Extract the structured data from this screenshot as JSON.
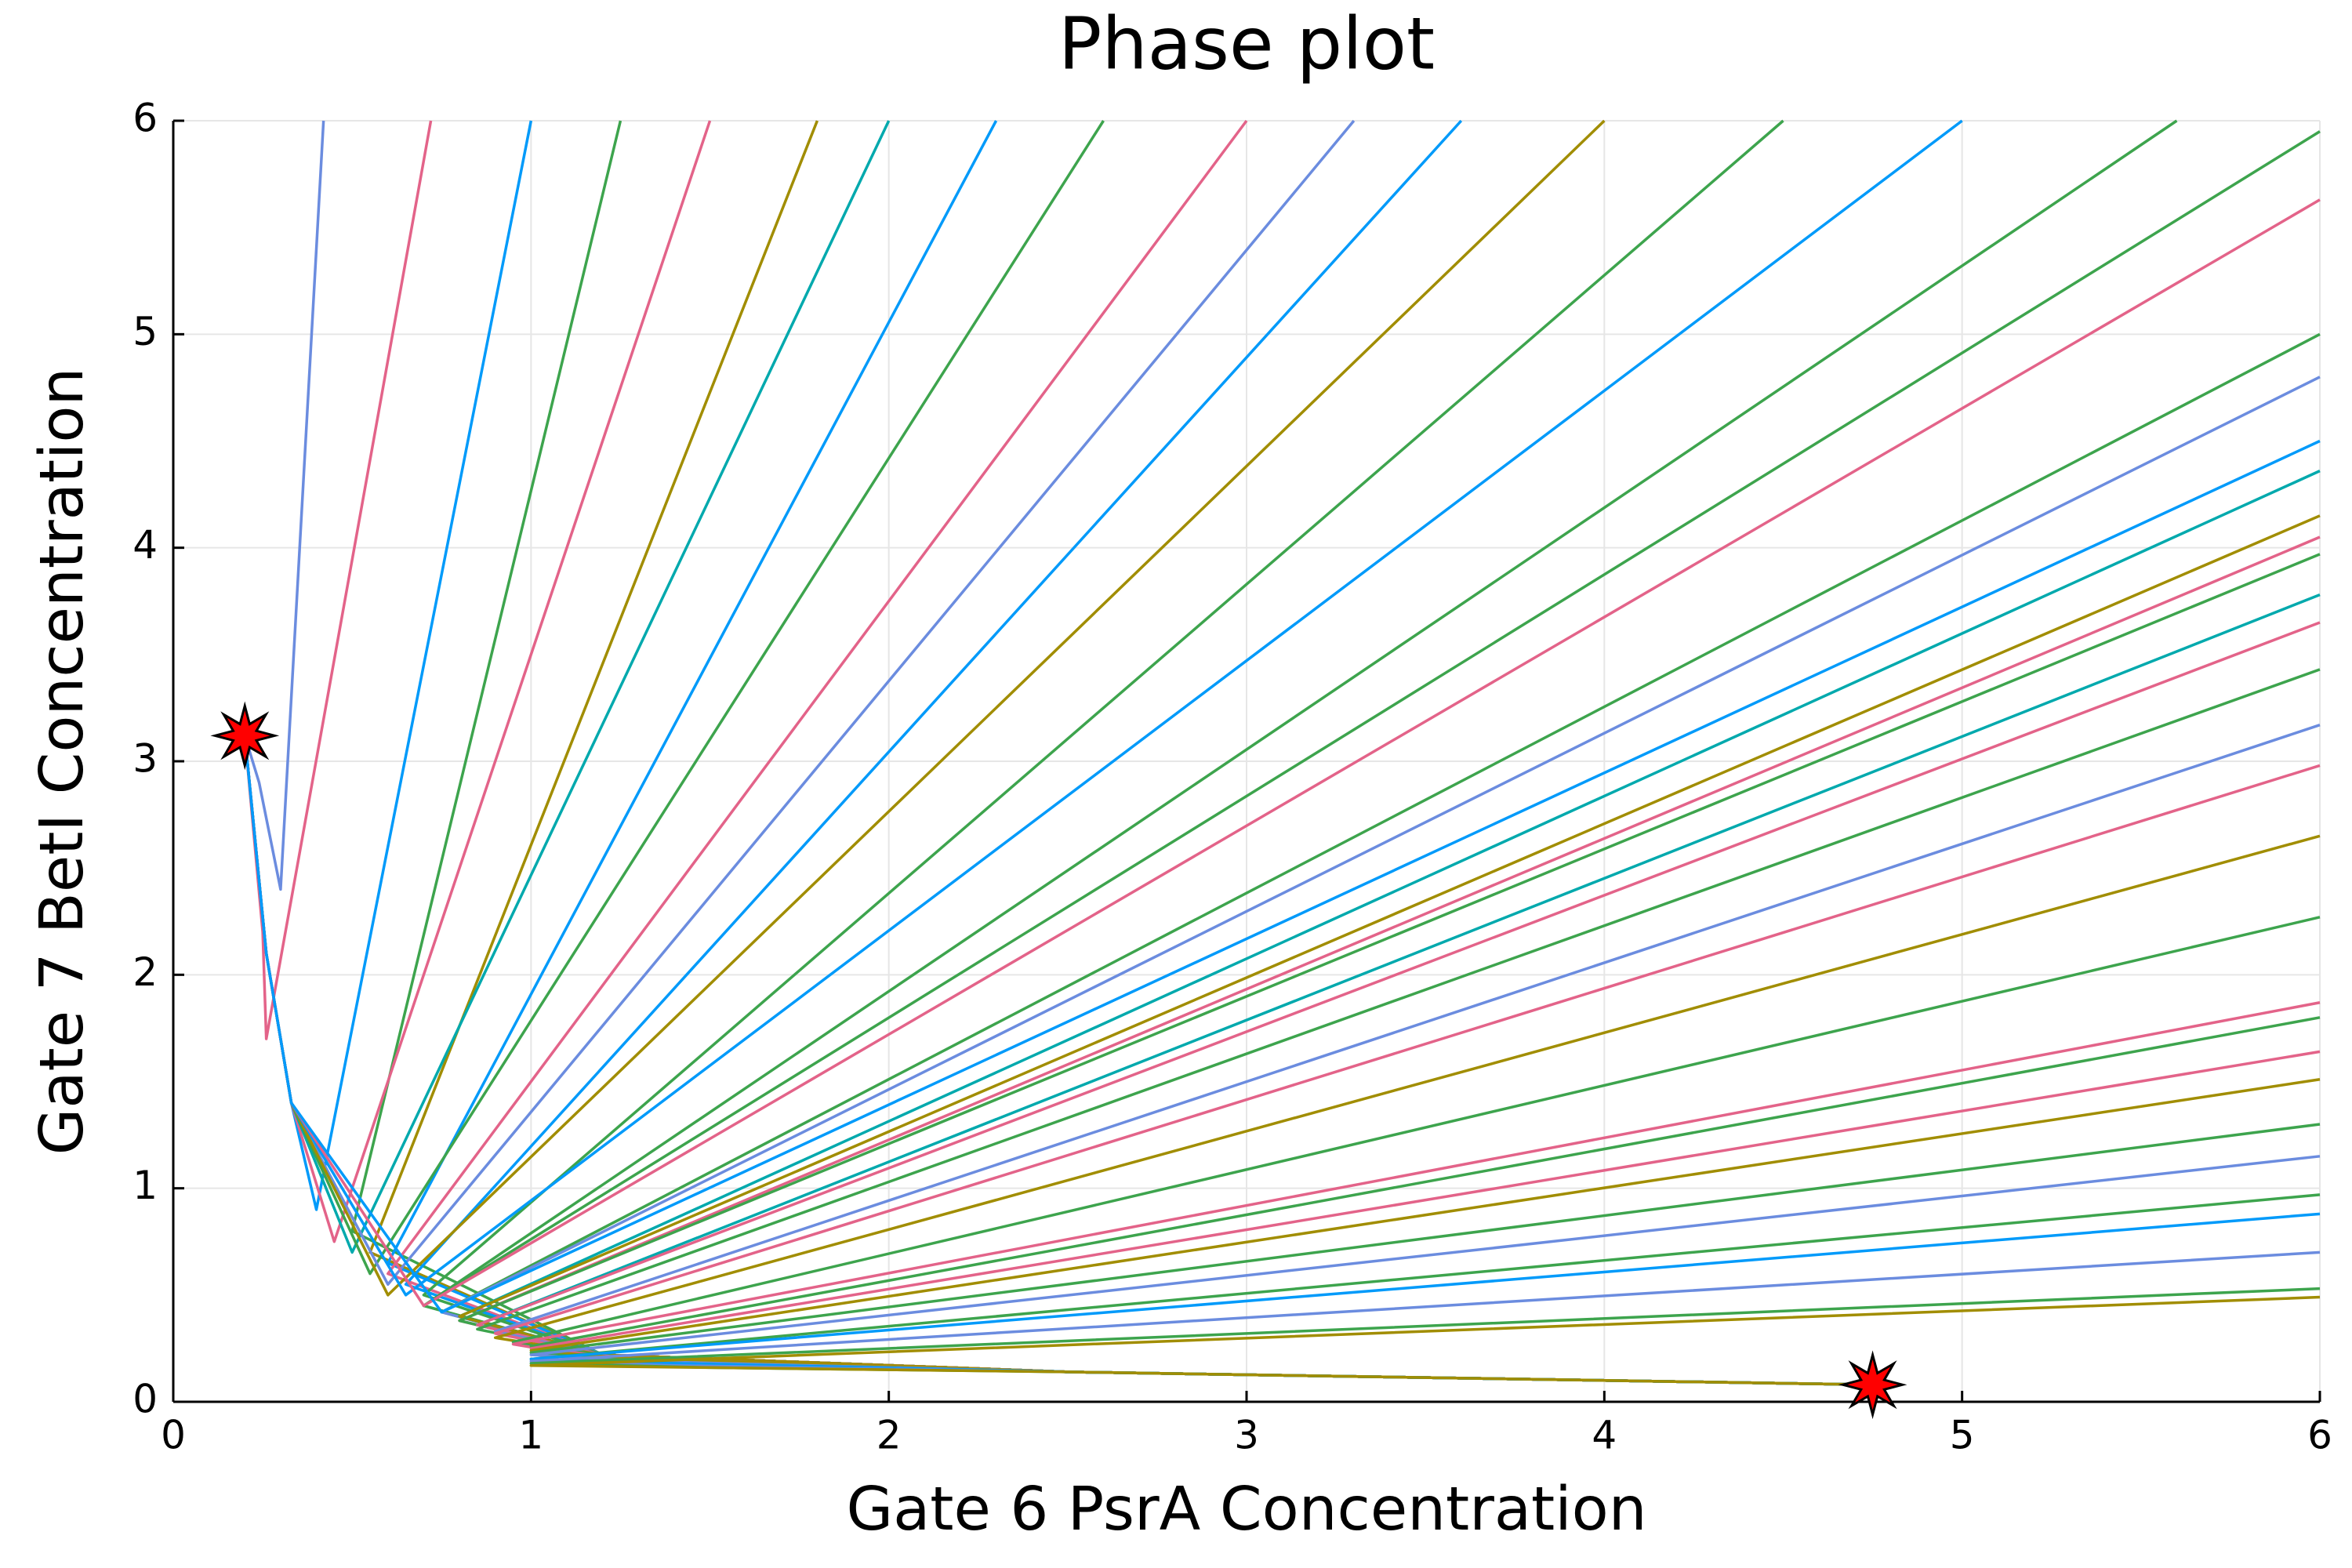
{
  "chart_data": {
    "type": "line",
    "title": "Phase plot",
    "x_label": "Gate 6 PsrA Concentration",
    "y_label": "Gate 7 BetI Concentration",
    "xlim": [
      0,
      6
    ],
    "ylim": [
      0,
      6
    ],
    "xticks": [
      0,
      1,
      2,
      3,
      4,
      5,
      6
    ],
    "yticks": [
      0,
      1,
      2,
      3,
      4,
      5,
      6
    ],
    "grid": true,
    "series": [
      {
        "color": "#6b8cdf",
        "x": [
          0.42,
          0.3,
          0.24,
          0.2
        ],
        "y": [
          6,
          2.4,
          2.9,
          3.12
        ]
      },
      {
        "color": "#e36389",
        "x": [
          0.72,
          0.26,
          0.25,
          0.2
        ],
        "y": [
          6,
          1.7,
          2.2,
          3.12
        ]
      },
      {
        "color": "#009afa",
        "x": [
          1.0,
          0.4,
          0.33,
          0.26,
          0.2
        ],
        "y": [
          6,
          0.9,
          1.4,
          2.1,
          3.12
        ]
      },
      {
        "color": "#3da44d",
        "x": [
          1.25,
          0.5,
          1.2,
          2.5,
          4.75
        ],
        "y": [
          6,
          0.8,
          0.22,
          0.14,
          0.08
        ]
      },
      {
        "color": "#e36389",
        "x": [
          1.5,
          0.45,
          0.33,
          0.26,
          0.2
        ],
        "y": [
          6,
          0.75,
          1.4,
          2.1,
          3.12
        ]
      },
      {
        "color": "#a18d00",
        "x": [
          1.8,
          0.55,
          1.2,
          2.5,
          4.75
        ],
        "y": [
          6,
          0.7,
          0.22,
          0.14,
          0.08
        ]
      },
      {
        "color": "#00a9ad",
        "x": [
          2.0,
          0.5,
          0.33,
          0.26,
          0.2
        ],
        "y": [
          6,
          0.7,
          1.4,
          2.1,
          3.12
        ]
      },
      {
        "color": "#009afa",
        "x": [
          2.3,
          0.6,
          1.2,
          2.5,
          4.75
        ],
        "y": [
          6,
          0.65,
          0.22,
          0.14,
          0.08
        ]
      },
      {
        "color": "#3da44d",
        "x": [
          2.6,
          0.55,
          0.33,
          0.26,
          0.2
        ],
        "y": [
          6,
          0.6,
          1.4,
          2.1,
          3.12
        ]
      },
      {
        "color": "#e36389",
        "x": [
          3.0,
          0.6,
          1.2,
          2.5,
          4.75
        ],
        "y": [
          6,
          0.6,
          0.22,
          0.14,
          0.08
        ]
      },
      {
        "color": "#6b8cdf",
        "x": [
          3.3,
          0.6,
          0.33,
          0.26,
          0.2
        ],
        "y": [
          6,
          0.55,
          1.4,
          2.1,
          3.12
        ]
      },
      {
        "color": "#009afa",
        "x": [
          3.6,
          0.65,
          1.2,
          2.5,
          4.75
        ],
        "y": [
          6,
          0.55,
          0.22,
          0.14,
          0.08
        ]
      },
      {
        "color": "#a18d00",
        "x": [
          4.0,
          0.6,
          0.33,
          0.26,
          0.2
        ],
        "y": [
          6,
          0.5,
          1.4,
          2.1,
          3.12
        ]
      },
      {
        "color": "#3da44d",
        "x": [
          4.5,
          0.7,
          1.2,
          2.5,
          4.75
        ],
        "y": [
          6,
          0.5,
          0.22,
          0.14,
          0.08
        ]
      },
      {
        "color": "#009afa",
        "x": [
          5.0,
          0.65,
          0.33,
          0.26,
          0.2
        ],
        "y": [
          6,
          0.5,
          1.4,
          2.1,
          3.12
        ]
      },
      {
        "color": "#3da44d",
        "x": [
          5.6,
          0.7,
          1.2,
          2.5,
          4.75
        ],
        "y": [
          6,
          0.45,
          0.22,
          0.14,
          0.08
        ]
      },
      {
        "color": "#3da44d",
        "x": [
          6,
          0.7,
          1.2,
          2.5,
          4.75
        ],
        "y": [
          5.95,
          0.45,
          0.22,
          0.14,
          0.08
        ]
      },
      {
        "color": "#e36389",
        "x": [
          6,
          0.7,
          0.33,
          0.26,
          0.2
        ],
        "y": [
          5.63,
          0.45,
          1.4,
          2.1,
          3.12
        ]
      },
      {
        "color": "#3da44d",
        "x": [
          6,
          0.75,
          1.2,
          2.5,
          4.75
        ],
        "y": [
          5.0,
          0.42,
          0.22,
          0.14,
          0.08
        ]
      },
      {
        "color": "#6b8cdf",
        "x": [
          6,
          0.75,
          1.2,
          2.5,
          4.75
        ],
        "y": [
          4.8,
          0.42,
          0.22,
          0.14,
          0.08
        ]
      },
      {
        "color": "#009afa",
        "x": [
          6,
          0.75,
          0.33,
          0.26,
          0.2
        ],
        "y": [
          4.5,
          0.42,
          1.4,
          2.1,
          3.12
        ]
      },
      {
        "color": "#00a9ad",
        "x": [
          6,
          0.8,
          1.2,
          2.5,
          4.75
        ],
        "y": [
          4.36,
          0.4,
          0.22,
          0.14,
          0.08
        ]
      },
      {
        "color": "#a18d00",
        "x": [
          6,
          0.8,
          1.2,
          2.5,
          4.75
        ],
        "y": [
          4.15,
          0.4,
          0.22,
          0.14,
          0.08
        ]
      },
      {
        "color": "#e36389",
        "x": [
          6,
          0.8,
          1.2,
          2.5,
          4.75
        ],
        "y": [
          4.05,
          0.38,
          0.22,
          0.14,
          0.08
        ]
      },
      {
        "color": "#3da44d",
        "x": [
          6,
          0.8,
          1.2,
          2.5,
          4.75
        ],
        "y": [
          3.97,
          0.38,
          0.22,
          0.14,
          0.08
        ]
      },
      {
        "color": "#00a9ad",
        "x": [
          6,
          0.85,
          1.2,
          2.5,
          4.75
        ],
        "y": [
          3.78,
          0.36,
          0.22,
          0.14,
          0.08
        ]
      },
      {
        "color": "#e36389",
        "x": [
          6,
          0.85,
          1.2,
          2.5,
          4.75
        ],
        "y": [
          3.65,
          0.36,
          0.22,
          0.14,
          0.08
        ]
      },
      {
        "color": "#3da44d",
        "x": [
          6,
          0.85,
          1.2,
          2.5,
          4.75
        ],
        "y": [
          3.43,
          0.34,
          0.22,
          0.14,
          0.08
        ]
      },
      {
        "color": "#6b8cdf",
        "x": [
          6,
          0.9,
          1.2,
          2.5,
          4.75
        ],
        "y": [
          3.17,
          0.33,
          0.22,
          0.14,
          0.08
        ]
      },
      {
        "color": "#e36389",
        "x": [
          6,
          0.9,
          1.2,
          2.5,
          4.75
        ],
        "y": [
          2.98,
          0.32,
          0.22,
          0.14,
          0.08
        ]
      },
      {
        "color": "#a18d00",
        "x": [
          6,
          0.9,
          1.2,
          2.5,
          4.75
        ],
        "y": [
          2.65,
          0.3,
          0.22,
          0.14,
          0.08
        ]
      },
      {
        "color": "#3da44d",
        "x": [
          6,
          0.95,
          1.2,
          2.5,
          4.75
        ],
        "y": [
          2.27,
          0.28,
          0.2,
          0.14,
          0.08
        ]
      },
      {
        "color": "#e36389",
        "x": [
          6,
          0.95,
          1.2,
          2.5,
          4.75
        ],
        "y": [
          1.87,
          0.27,
          0.2,
          0.14,
          0.08
        ]
      },
      {
        "color": "#3da44d",
        "x": [
          6,
          1.0,
          1.3,
          2.5,
          4.75
        ],
        "y": [
          1.8,
          0.26,
          0.2,
          0.14,
          0.08
        ]
      },
      {
        "color": "#e36389",
        "x": [
          6,
          1.0,
          1.3,
          2.5,
          4.75
        ],
        "y": [
          1.64,
          0.25,
          0.2,
          0.14,
          0.08
        ]
      },
      {
        "color": "#a18d00",
        "x": [
          6,
          1.0,
          1.3,
          2.5,
          4.75
        ],
        "y": [
          1.51,
          0.24,
          0.2,
          0.14,
          0.08
        ]
      },
      {
        "color": "#3da44d",
        "x": [
          6,
          1.0,
          1.3,
          2.5,
          4.75
        ],
        "y": [
          1.3,
          0.23,
          0.19,
          0.14,
          0.08
        ]
      },
      {
        "color": "#6b8cdf",
        "x": [
          6,
          1.0,
          1.3,
          2.5,
          4.75
        ],
        "y": [
          1.15,
          0.22,
          0.19,
          0.14,
          0.08
        ]
      },
      {
        "color": "#3da44d",
        "x": [
          6,
          1.0,
          1.4,
          2.5,
          4.75
        ],
        "y": [
          0.97,
          0.2,
          0.18,
          0.14,
          0.08
        ]
      },
      {
        "color": "#009afa",
        "x": [
          6,
          1.0,
          1.4,
          2.5,
          4.75
        ],
        "y": [
          0.88,
          0.2,
          0.18,
          0.14,
          0.08
        ]
      },
      {
        "color": "#6b8cdf",
        "x": [
          6,
          1.0,
          1.4,
          2.5,
          4.75
        ],
        "y": [
          0.7,
          0.19,
          0.17,
          0.14,
          0.08
        ]
      },
      {
        "color": "#3da44d",
        "x": [
          6,
          1.0,
          1.5,
          2.5,
          4.75
        ],
        "y": [
          0.53,
          0.18,
          0.16,
          0.14,
          0.08
        ]
      },
      {
        "color": "#a18d00",
        "x": [
          6,
          1.0,
          1.5,
          2.5,
          4.75
        ],
        "y": [
          0.49,
          0.17,
          0.16,
          0.14,
          0.08
        ]
      }
    ],
    "markers": {
      "color": "#ff0000",
      "x": [
        0.2,
        4.75
      ],
      "y": [
        3.12,
        0.08
      ]
    }
  }
}
